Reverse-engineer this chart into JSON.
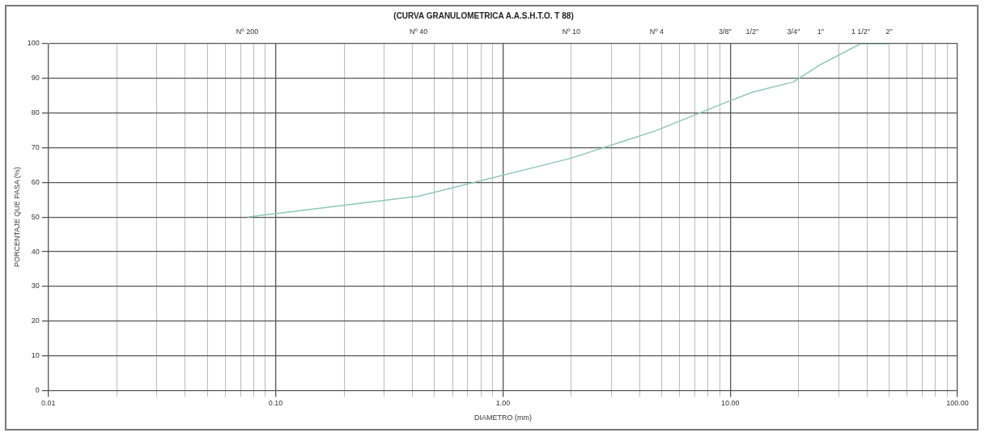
{
  "chart_data": {
    "type": "line",
    "title": "(CURVA GRANULOMETRICA A.A.S.H.T.O. T 88)",
    "xlabel": "DIAMETRO (mm)",
    "ylabel": "PORCENTAJE QUE PASA (%)",
    "log": "x",
    "series": [
      {
        "color": "#8cc7b4",
        "x": [
          0.075,
          0.425,
          2.0,
          4.75,
          9.5,
          12.5,
          19,
          25,
          37.5,
          50
        ],
        "values": [
          50,
          56,
          67,
          75,
          83,
          86,
          89,
          94,
          100,
          100
        ]
      }
    ],
    "xlim": [
      0.01,
      100
    ],
    "xticks": [
      {
        "value": 0.01,
        "label": "0.01"
      },
      {
        "value": 0.02,
        "label": null
      },
      {
        "value": 0.03,
        "label": null
      },
      {
        "value": 0.04,
        "label": null
      },
      {
        "value": 0.05,
        "label": null
      },
      {
        "value": 0.06,
        "label": null
      },
      {
        "value": 0.07,
        "label": null
      },
      {
        "value": 0.08,
        "label": null
      },
      {
        "value": 0.09,
        "label": null
      },
      {
        "value": 0.1,
        "label": "0.10"
      },
      {
        "value": 0.2,
        "label": null
      },
      {
        "value": 0.3,
        "label": null
      },
      {
        "value": 0.4,
        "label": null
      },
      {
        "value": 0.5,
        "label": null
      },
      {
        "value": 0.6,
        "label": null
      },
      {
        "value": 0.7,
        "label": null
      },
      {
        "value": 0.8,
        "label": null
      },
      {
        "value": 0.9,
        "label": null
      },
      {
        "value": 1,
        "label": "1.00"
      },
      {
        "value": 2,
        "label": null
      },
      {
        "value": 3,
        "label": null
      },
      {
        "value": 4,
        "label": null
      },
      {
        "value": 5,
        "label": null
      },
      {
        "value": 6,
        "label": null
      },
      {
        "value": 7,
        "label": null
      },
      {
        "value": 8,
        "label": null
      },
      {
        "value": 9,
        "label": null
      },
      {
        "value": 10,
        "label": "10.00"
      },
      {
        "value": 20,
        "label": null
      },
      {
        "value": 30,
        "label": null
      },
      {
        "value": 40,
        "label": null
      },
      {
        "value": 50,
        "label": null
      },
      {
        "value": 60,
        "label": null
      },
      {
        "value": 70,
        "label": null
      },
      {
        "value": 80,
        "label": null
      },
      {
        "value": 90,
        "label": null
      },
      {
        "value": 100,
        "label": "100.00"
      }
    ],
    "annotations": [
      "Nº 200",
      "Nº 40",
      "Nº 10",
      "Nº 4",
      "3/8\"",
      "1/2\"",
      "3/4\"",
      "1\"",
      "1 1/2\"",
      "2\""
    ],
    "ylim": [
      0,
      100
    ],
    "yticks": [
      0,
      10,
      20,
      30,
      40,
      50,
      60,
      70,
      80,
      90,
      100
    ],
    "grid": true,
    "legend": false,
    "marker": "none",
    "line_style": "solid"
  }
}
